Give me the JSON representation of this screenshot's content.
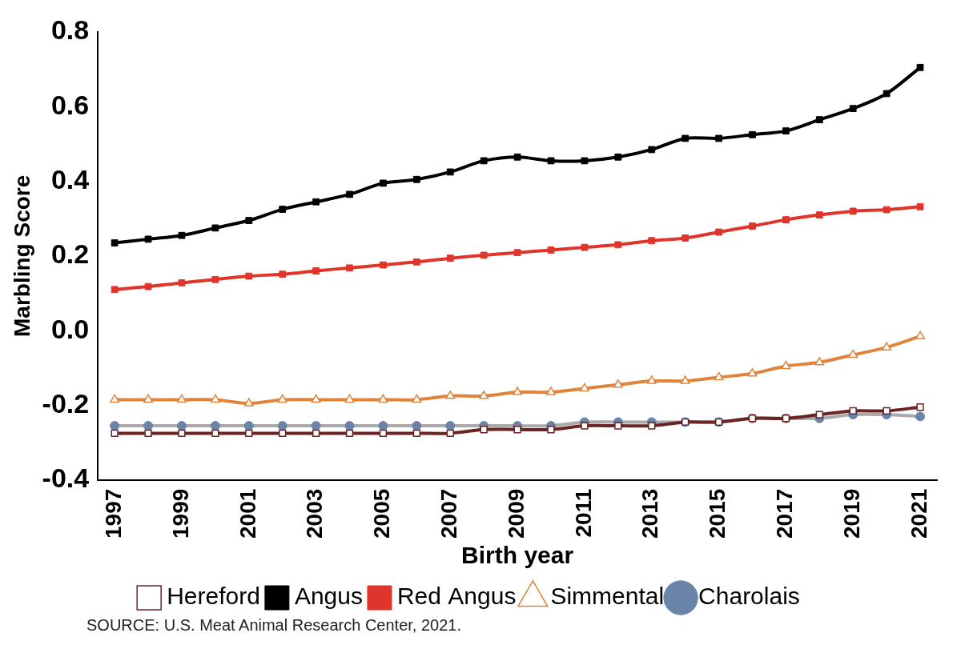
{
  "chart_data": {
    "type": "line",
    "y_label": "Marbling Score",
    "x_label": "Birth year",
    "source": "SOURCE: U.S. Meat Animal Research Center, 2021.",
    "categories": [
      "1997",
      null,
      "1999",
      null,
      "2001",
      null,
      "2003",
      null,
      "2005",
      null,
      "2007",
      null,
      "2009",
      null,
      "2011",
      null,
      "2013",
      null,
      "2015",
      null,
      "2017",
      null,
      "2019",
      null,
      "2021"
    ],
    "series": [
      {
        "name": "Hereford",
        "color": "#6b2424",
        "marker": "open_square",
        "values": [
          -0.275,
          -0.275,
          -0.275,
          -0.275,
          -0.275,
          -0.275,
          -0.275,
          -0.275,
          -0.275,
          -0.275,
          -0.275,
          -0.265,
          -0.265,
          -0.265,
          -0.255,
          -0.255,
          -0.255,
          -0.245,
          -0.245,
          -0.235,
          -0.235,
          -0.225,
          -0.215,
          -0.215,
          -0.205
        ]
      },
      {
        "name": "Angus",
        "color": "#000000",
        "marker": "square",
        "values": [
          0.235,
          0.245,
          0.255,
          0.275,
          0.295,
          0.325,
          0.345,
          0.365,
          0.395,
          0.405,
          0.425,
          0.455,
          0.465,
          0.455,
          0.455,
          0.465,
          0.485,
          0.515,
          0.515,
          0.525,
          0.535,
          0.565,
          0.595,
          0.635,
          0.705
        ]
      },
      {
        "name": "Red Angus",
        "color": "#e0352b",
        "marker": "square",
        "values": [
          0.11,
          0.118,
          0.128,
          0.137,
          0.146,
          0.151,
          0.16,
          0.168,
          0.176,
          0.184,
          0.194,
          0.202,
          0.209,
          0.216,
          0.223,
          0.23,
          0.241,
          0.248,
          0.264,
          0.28,
          0.297,
          0.31,
          0.32,
          0.324,
          0.332
        ]
      },
      {
        "name": "Simmental",
        "color": "#e0843c",
        "marker": "open_triangle",
        "values": [
          -0.185,
          -0.185,
          -0.185,
          -0.185,
          -0.195,
          -0.185,
          -0.185,
          -0.185,
          -0.185,
          -0.185,
          -0.175,
          -0.175,
          -0.165,
          -0.165,
          -0.155,
          -0.145,
          -0.135,
          -0.135,
          -0.125,
          -0.115,
          -0.095,
          -0.085,
          -0.065,
          -0.045,
          -0.015
        ]
      },
      {
        "name": "Charolais",
        "color": "#aaaaaa",
        "marker": "circle",
        "values": [
          -0.255,
          -0.255,
          -0.255,
          -0.255,
          -0.255,
          -0.255,
          -0.255,
          -0.255,
          -0.255,
          -0.255,
          -0.255,
          -0.255,
          -0.255,
          -0.255,
          -0.245,
          -0.245,
          -0.245,
          -0.245,
          -0.245,
          -0.235,
          -0.235,
          -0.235,
          -0.225,
          -0.225,
          -0.23
        ]
      }
    ],
    "ylim": [
      -0.4,
      0.8
    ],
    "yticks": [
      -0.4,
      -0.2,
      {
        "value": 0,
        "label": "0.0"
      },
      0.2,
      0.4,
      0.6,
      0.8
    ],
    "grid": false,
    "legend": "bottom"
  }
}
